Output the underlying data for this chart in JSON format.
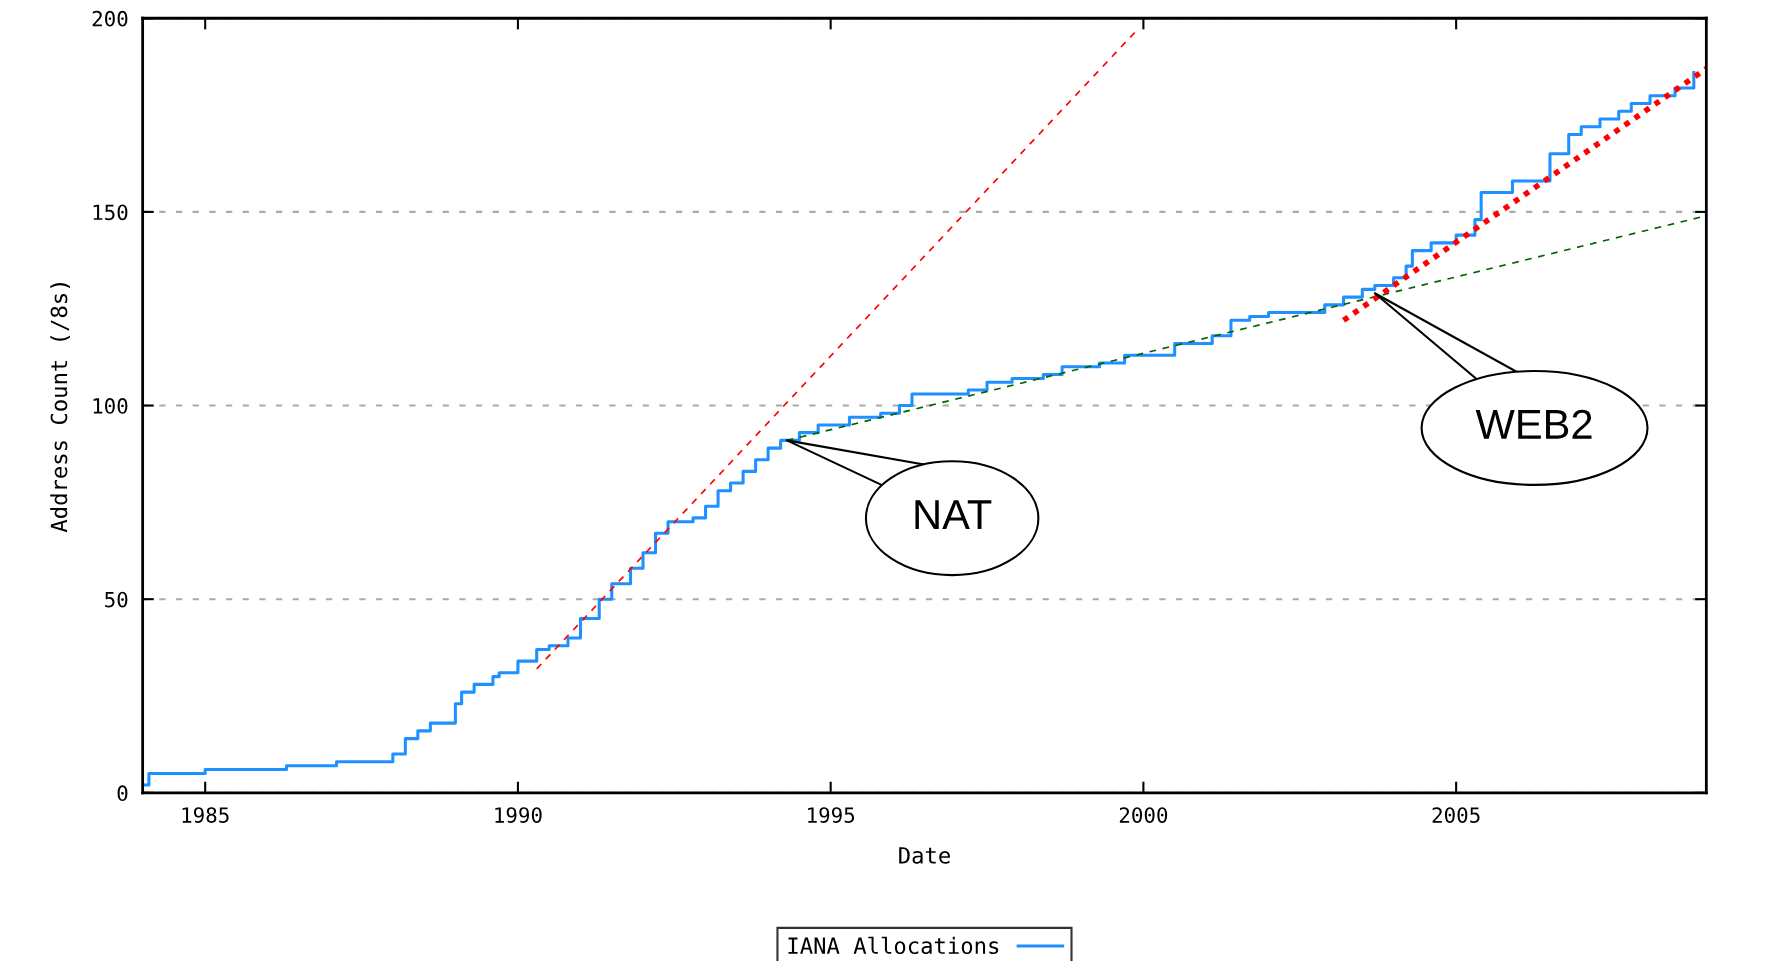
{
  "chart_data": {
    "type": "step",
    "xlabel": "Date",
    "ylabel": "Address Count (/8s)",
    "xlim": [
      1984,
      2009
    ],
    "ylim": [
      0,
      200
    ],
    "xticks": [
      1985,
      1990,
      1995,
      2000,
      2005
    ],
    "yticks": [
      0,
      50,
      100,
      150,
      200
    ],
    "grid": "y",
    "legend": "bottom",
    "series": [
      {
        "name": "IANA Allocations",
        "color": "#1e90ff",
        "type": "step",
        "x": [
          1984.0,
          1984.1,
          1985.0,
          1986.3,
          1987.1,
          1988.0,
          1988.2,
          1988.4,
          1988.6,
          1989.0,
          1989.1,
          1989.3,
          1989.6,
          1989.7,
          1990.0,
          1990.3,
          1990.5,
          1990.8,
          1991.0,
          1991.3,
          1991.5,
          1991.8,
          1992.0,
          1992.2,
          1992.4,
          1992.8,
          1993.0,
          1993.2,
          1993.4,
          1993.6,
          1993.8,
          1994.0,
          1994.2,
          1994.5,
          1994.8,
          1995.3,
          1995.8,
          1996.1,
          1996.3,
          1997.2,
          1997.5,
          1997.9,
          1998.4,
          1998.7,
          1999.3,
          1999.7,
          2000.5,
          2001.1,
          2001.4,
          2001.7,
          2002.0,
          2002.9,
          2003.2,
          2003.5,
          2003.7,
          2004.0,
          2004.2,
          2004.3,
          2004.6,
          2005.0,
          2005.3,
          2005.4,
          2005.9,
          2006.5,
          2006.8,
          2007.0,
          2007.3,
          2007.6,
          2007.8,
          2008.1,
          2008.5,
          2008.8
        ],
        "values": [
          2,
          5,
          6,
          7,
          8,
          10,
          14,
          16,
          18,
          23,
          26,
          28,
          30,
          31,
          34,
          37,
          38,
          40,
          45,
          50,
          54,
          58,
          62,
          67,
          70,
          71,
          74,
          78,
          80,
          83,
          86,
          89,
          91,
          93,
          95,
          97,
          98,
          100,
          103,
          104,
          106,
          107,
          108,
          110,
          111,
          113,
          116,
          118,
          122,
          123,
          124,
          126,
          128,
          130,
          131,
          133,
          136,
          140,
          142,
          144,
          148,
          155,
          158,
          165,
          170,
          172,
          174,
          176,
          178,
          180,
          182,
          186
        ]
      },
      {
        "color": "#ff0000",
        "type": "line",
        "line_style": "dashed",
        "x": [
          1990.3,
          1999.9
        ],
        "values": [
          32,
          197
        ]
      },
      {
        "color": "#006400",
        "type": "line",
        "line_style": "dashed",
        "x": [
          1994.3,
          2009.0
        ],
        "values": [
          91,
          149
        ]
      },
      {
        "color": "#ff0000",
        "type": "line",
        "line_style": "dotted",
        "x": [
          2003.2,
          2009.0
        ],
        "values": [
          122,
          187
        ]
      }
    ],
    "annotations": [
      {
        "text": "NAT",
        "x": 1994.3,
        "y": 91
      },
      {
        "text": "WEB2",
        "x": 2003.7,
        "y": 129
      }
    ]
  }
}
